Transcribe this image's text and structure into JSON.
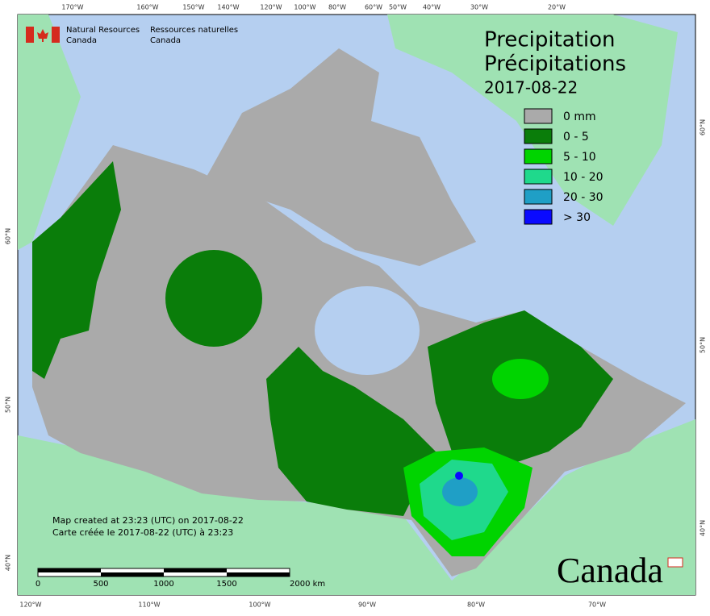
{
  "header": {
    "en_line1": "Natural Resources",
    "en_line2": "Canada",
    "fr_line1": "Ressources naturelles",
    "fr_line2": "Canada"
  },
  "title": {
    "en": "Precipitation",
    "fr": "Précipitations",
    "date": "2017-08-22"
  },
  "legend": [
    {
      "label": "0 mm",
      "color": "#aaaaaa"
    },
    {
      "label": "0 - 5",
      "color": "#0a7d0a"
    },
    {
      "label": "5 - 10",
      "color": "#00d400"
    },
    {
      "label": "10 - 20",
      "color": "#1fd98c"
    },
    {
      "label": "20 - 30",
      "color": "#1f9fc6"
    },
    {
      "label": "> 30",
      "color": "#0a0aff"
    }
  ],
  "graticule": {
    "top": [
      "170°W",
      "160°W",
      "150°W",
      "140°W",
      "120°W",
      "100°W",
      "80°W",
      "60°W",
      "50°W",
      "40°W",
      "30°W",
      "20°W"
    ],
    "bottom": [
      "120°W",
      "110°W",
      "100°W",
      "90°W",
      "80°W",
      "70°W"
    ],
    "left": [
      "60°N",
      "50°N",
      "40°N"
    ],
    "right": [
      "60°N",
      "50°N",
      "40°N"
    ]
  },
  "credits": {
    "created_en": "Map created at 23:23 (UTC) on 2017-08-22",
    "created_fr": "Carte créée le 2017-08-22 (UTC) à 23:23"
  },
  "scale_bar": {
    "labels": [
      "0",
      "500",
      "1000",
      "1500",
      "2000 km"
    ]
  },
  "wordmark": "Canada"
}
